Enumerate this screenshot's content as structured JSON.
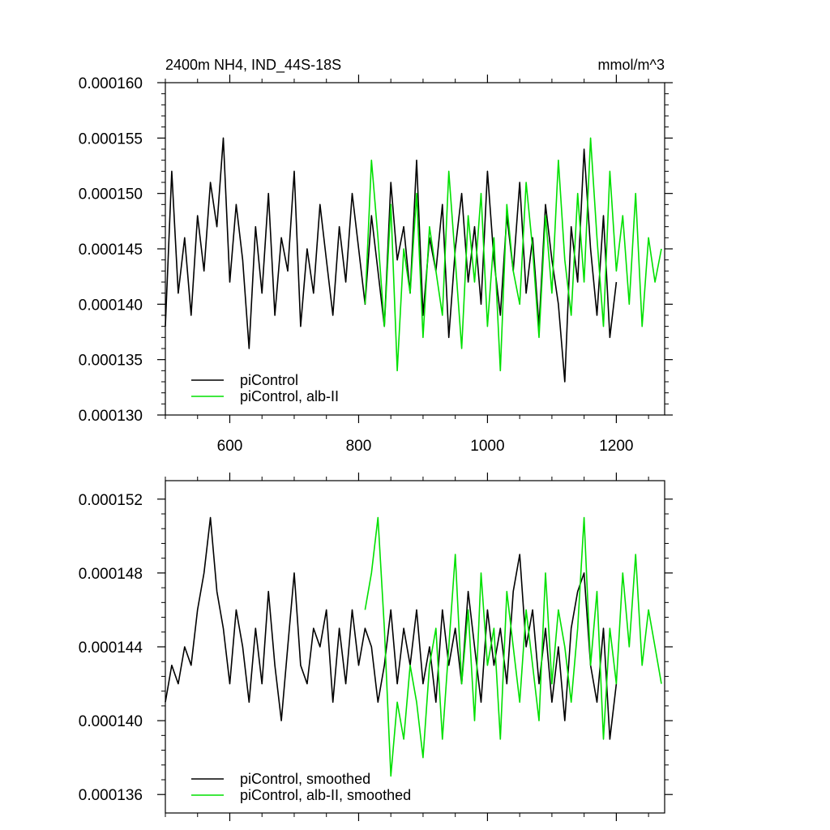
{
  "chart_data": [
    {
      "type": "line",
      "title": "2400m NH4, IND_44S-18S",
      "units": "mmol/m^3",
      "xlim": [
        500,
        1275
      ],
      "ylim": [
        0.00013,
        0.00016
      ],
      "xticks": [
        600,
        800,
        1000,
        1200
      ],
      "xtick_labels": [
        "600",
        "800",
        "1000",
        "1200"
      ],
      "yticks": [
        0.00013,
        0.000135,
        0.00014,
        0.000145,
        0.00015,
        0.000155,
        0.00016
      ],
      "ytick_labels": [
        "0.000130",
        "0.000135",
        "0.000140",
        "0.000145",
        "0.000150",
        "0.000155",
        "0.000160"
      ],
      "legend_position": "bottom-left",
      "series": [
        {
          "name": "piControl",
          "color": "#000000",
          "x": [
            500,
            510,
            520,
            530,
            540,
            550,
            560,
            570,
            580,
            590,
            600,
            610,
            620,
            630,
            640,
            650,
            660,
            670,
            680,
            690,
            700,
            710,
            720,
            730,
            740,
            750,
            760,
            770,
            780,
            790,
            800,
            810,
            820,
            830,
            840,
            850,
            860,
            870,
            880,
            890,
            900,
            910,
            920,
            930,
            940,
            950,
            960,
            970,
            980,
            990,
            1000,
            1010,
            1020,
            1030,
            1040,
            1050,
            1060,
            1070,
            1080,
            1090,
            1100,
            1110,
            1120,
            1130,
            1140,
            1150,
            1160,
            1170,
            1180,
            1190,
            1200
          ],
          "y": [
            0.000138,
            0.000152,
            0.000141,
            0.000146,
            0.000139,
            0.000148,
            0.000143,
            0.000151,
            0.000147,
            0.000155,
            0.000142,
            0.000149,
            0.000144,
            0.000136,
            0.000147,
            0.000141,
            0.00015,
            0.000139,
            0.000146,
            0.000143,
            0.000152,
            0.000138,
            0.000145,
            0.000141,
            0.000149,
            0.000144,
            0.000139,
            0.000147,
            0.000142,
            0.00015,
            0.000145,
            0.00014,
            0.000148,
            0.000143,
            0.000138,
            0.000151,
            0.000144,
            0.000147,
            0.000141,
            0.000153,
            0.000139,
            0.000146,
            0.000143,
            0.000149,
            0.000137,
            0.000145,
            0.00015,
            0.000142,
            0.000147,
            0.00014,
            0.000152,
            0.000144,
            0.000139,
            0.000148,
            0.000143,
            0.000151,
            0.000141,
            0.000146,
            0.000138,
            0.000149,
            0.000144,
            0.00014,
            0.000133,
            0.000147,
            0.000142,
            0.000154,
            0.000145,
            0.000139,
            0.000148,
            0.000137,
            0.000142
          ]
        },
        {
          "name": "piControl, alb-II",
          "color": "#00e000",
          "x": [
            810,
            820,
            830,
            840,
            850,
            860,
            870,
            880,
            890,
            900,
            910,
            920,
            930,
            940,
            950,
            960,
            970,
            980,
            990,
            1000,
            1010,
            1020,
            1030,
            1040,
            1050,
            1060,
            1070,
            1080,
            1090,
            1100,
            1110,
            1120,
            1130,
            1140,
            1150,
            1160,
            1170,
            1180,
            1190,
            1200,
            1210,
            1220,
            1230,
            1240,
            1250,
            1260,
            1270
          ],
          "y": [
            0.00014,
            0.000153,
            0.000146,
            0.000138,
            0.000149,
            0.000134,
            0.000145,
            0.000141,
            0.00015,
            0.000137,
            0.000147,
            0.000143,
            0.000139,
            0.000152,
            0.000144,
            0.000136,
            0.000148,
            0.000142,
            0.00015,
            0.000138,
            0.000146,
            0.000134,
            0.000149,
            0.000143,
            0.00014,
            0.000151,
            0.000145,
            0.000137,
            0.000148,
            0.000141,
            0.000153,
            0.000144,
            0.000139,
            0.00015,
            0.000142,
            0.000155,
            0.000146,
            0.000138,
            0.000152,
            0.000143,
            0.000148,
            0.00014,
            0.00015,
            0.000138,
            0.000146,
            0.000142,
            0.000145
          ]
        }
      ]
    },
    {
      "type": "line",
      "xlim": [
        500,
        1275
      ],
      "ylim": [
        0.000135,
        0.000153
      ],
      "xticks": [
        600,
        800,
        1000,
        1200
      ],
      "yticks": [
        0.000136,
        0.00014,
        0.000144,
        0.000148,
        0.000152
      ],
      "ytick_labels": [
        "0.000136",
        "0.000140",
        "0.000144",
        "0.000148",
        "0.000152"
      ],
      "legend_position": "bottom-left",
      "series": [
        {
          "name": "piControl, smoothed",
          "color": "#000000",
          "x": [
            500,
            510,
            520,
            530,
            540,
            550,
            560,
            570,
            580,
            590,
            600,
            610,
            620,
            630,
            640,
            650,
            660,
            670,
            680,
            690,
            700,
            710,
            720,
            730,
            740,
            750,
            760,
            770,
            780,
            790,
            800,
            810,
            820,
            830,
            840,
            850,
            860,
            870,
            880,
            890,
            900,
            910,
            920,
            930,
            940,
            950,
            960,
            970,
            980,
            990,
            1000,
            1010,
            1020,
            1030,
            1040,
            1050,
            1060,
            1070,
            1080,
            1090,
            1100,
            1110,
            1120,
            1130,
            1140,
            1150,
            1160,
            1170,
            1180,
            1190,
            1200
          ],
          "y": [
            0.000141,
            0.000143,
            0.000142,
            0.000144,
            0.000143,
            0.000146,
            0.000148,
            0.000151,
            0.000147,
            0.000145,
            0.000142,
            0.000146,
            0.000144,
            0.000141,
            0.000145,
            0.000142,
            0.000147,
            0.000143,
            0.00014,
            0.000144,
            0.000148,
            0.000143,
            0.000142,
            0.000145,
            0.000144,
            0.000146,
            0.000141,
            0.000145,
            0.000142,
            0.000146,
            0.000143,
            0.000145,
            0.000144,
            0.000141,
            0.000143,
            0.000146,
            0.000142,
            0.000145,
            0.000143,
            0.000146,
            0.000142,
            0.000144,
            0.000141,
            0.000146,
            0.000143,
            0.000145,
            0.000142,
            0.000147,
            0.000144,
            0.000141,
            0.000146,
            0.000143,
            0.000145,
            0.000142,
            0.000147,
            0.000149,
            0.000144,
            0.000146,
            0.000142,
            0.000145,
            0.000141,
            0.000144,
            0.00014,
            0.000145,
            0.000147,
            0.000148,
            0.000143,
            0.000141,
            0.000145,
            0.000139,
            0.000142
          ]
        },
        {
          "name": "piControl, alb-II, smoothed",
          "color": "#00e000",
          "x": [
            810,
            820,
            830,
            840,
            850,
            860,
            870,
            880,
            890,
            900,
            910,
            920,
            930,
            940,
            950,
            960,
            970,
            980,
            990,
            1000,
            1010,
            1020,
            1030,
            1040,
            1050,
            1060,
            1070,
            1080,
            1090,
            1100,
            1110,
            1120,
            1130,
            1140,
            1150,
            1160,
            1170,
            1180,
            1190,
            1200,
            1210,
            1220,
            1230,
            1240,
            1250,
            1260,
            1270
          ],
          "y": [
            0.000146,
            0.000148,
            0.000151,
            0.000145,
            0.000137,
            0.000141,
            0.000139,
            0.000143,
            0.000141,
            0.000138,
            0.000143,
            0.000145,
            0.000139,
            0.000144,
            0.000149,
            0.000142,
            0.000146,
            0.00014,
            0.000148,
            0.000143,
            0.000145,
            0.000139,
            0.000147,
            0.000144,
            0.000141,
            0.000146,
            0.000143,
            0.00014,
            0.000148,
            0.000142,
            0.000146,
            0.000144,
            0.000141,
            0.000145,
            0.000151,
            0.000143,
            0.000147,
            0.000139,
            0.000145,
            0.000142,
            0.000148,
            0.000144,
            0.000149,
            0.000143,
            0.000146,
            0.000144,
            0.000142
          ]
        }
      ]
    }
  ]
}
